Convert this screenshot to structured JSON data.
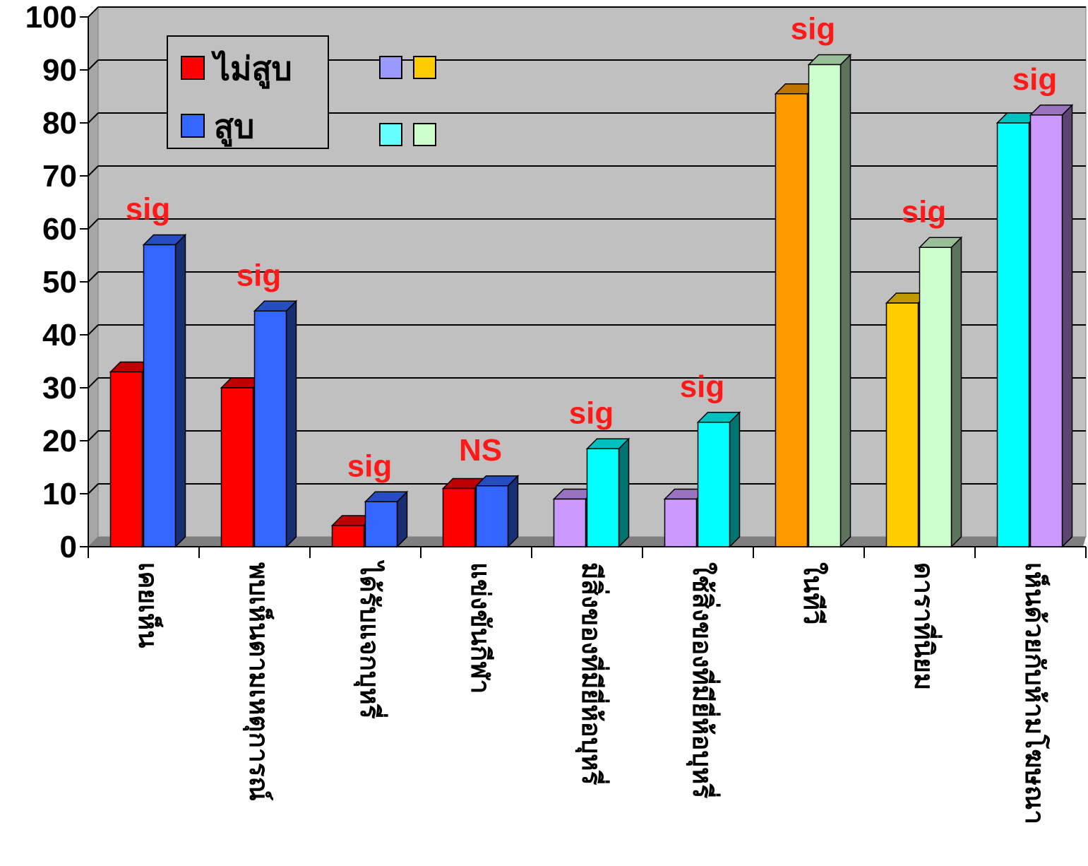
{
  "chart_data": {
    "type": "bar",
    "title": "",
    "xlabel": "",
    "ylabel": "",
    "ylim": [
      0,
      100
    ],
    "yticks": [
      "0",
      "10",
      "20",
      "30",
      "40",
      "50",
      "60",
      "70",
      "80",
      "90",
      "100"
    ],
    "grid": true,
    "legend_placement": "top-left",
    "categories": [
      "เคยเห็น",
      "พบเห็นตามเหตุการณ์",
      "ได้รับแจกบุหรี่",
      "แข่งขันกีฬา",
      "มีสิ่งของที่มียี่ห้อบุหรี่",
      "ใช้สิ่งของที่มียี่ห้อบุหรี่",
      "ในทีวี",
      "ดาราที่นิยม",
      "เห็นด้วยกับห้ามโฆษณา"
    ],
    "series": [
      {
        "name": "ไม่สูบ",
        "values": [
          33,
          30,
          4,
          11,
          9,
          9,
          85.5,
          46,
          80
        ]
      },
      {
        "name": "สูบ",
        "values": [
          57,
          44.5,
          8.5,
          11.5,
          18.5,
          23.5,
          91,
          56.5,
          81.5
        ]
      }
    ],
    "annotations": [
      "sig",
      "sig",
      "sig",
      "NS",
      "sig",
      "sig",
      "sig",
      "sig",
      "sig"
    ],
    "bar_colors": [
      [
        "#ff0000",
        "#3366ff"
      ],
      [
        "#ff0000",
        "#3366ff"
      ],
      [
        "#ff0000",
        "#3366ff"
      ],
      [
        "#ff0000",
        "#3366ff"
      ],
      [
        "#cc99ff",
        "#00ffff"
      ],
      [
        "#cc99ff",
        "#00ffff"
      ],
      [
        "#ff9900",
        "#ccffcc"
      ],
      [
        "#ffcc00",
        "#ccffcc"
      ],
      [
        "#00ffff",
        "#cc99ff"
      ]
    ],
    "legend_colors": [
      "#ff0000",
      "#3366ff"
    ],
    "extra_swatches": [
      "#9999ff",
      "#ffcc00",
      "#66ffff",
      "#ccffcc"
    ],
    "plot_background": "#c0c0c0",
    "annotation_color": "#ff1a1a"
  }
}
